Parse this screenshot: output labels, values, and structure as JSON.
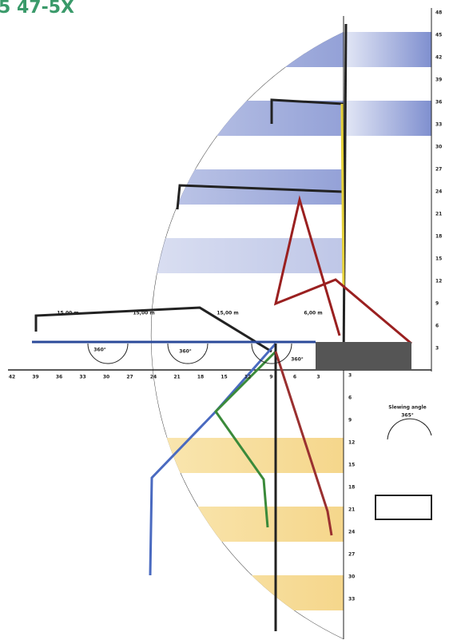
{
  "header": {
    "title": "5 47-5X"
  },
  "axes": {
    "upper": [
      "48",
      "45",
      "42",
      "39",
      "36",
      "33",
      "30",
      "27",
      "24",
      "21",
      "18",
      "15",
      "12",
      "9",
      "6",
      "3"
    ],
    "lower": [
      "3",
      "6",
      "9",
      "12",
      "15",
      "18",
      "21",
      "24",
      "27",
      "30",
      "33"
    ],
    "bottom": [
      "42",
      "39",
      "36",
      "33",
      "30",
      "27",
      "24",
      "21",
      "18",
      "15",
      "12",
      "9",
      "6",
      "3"
    ]
  },
  "labels": {
    "dim1": "15,00 m",
    "dim2": "15,00 m",
    "dim3": "15,00 m",
    "dim4": "6,00 m",
    "angle1": "360°",
    "angle2": "360°",
    "angle3": "360°",
    "slewing": "Slewing angle",
    "slewing_value": "365°"
  }
}
